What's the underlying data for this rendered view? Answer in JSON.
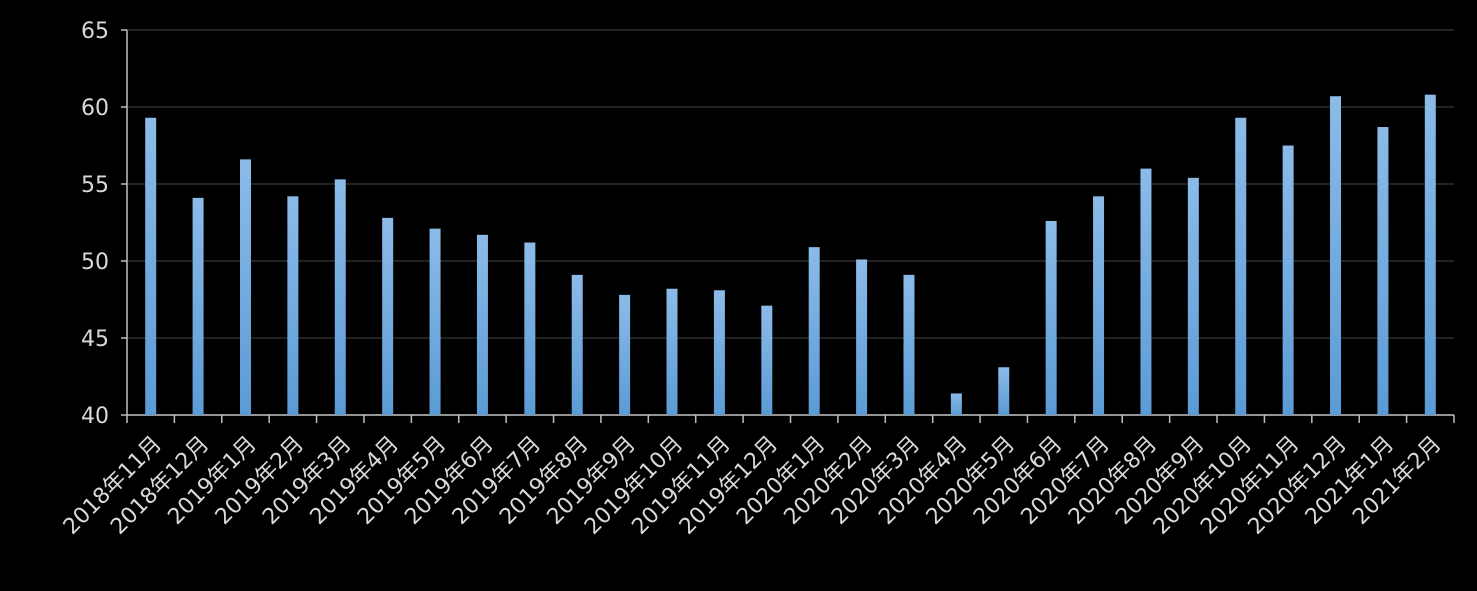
{
  "chart_data": {
    "type": "bar",
    "categories": [
      "2018年11月",
      "2018年12月",
      "2019年1月",
      "2019年2月",
      "2019年3月",
      "2019年4月",
      "2019年5月",
      "2019年6月",
      "2019年7月",
      "2019年8月",
      "2019年9月",
      "2019年10月",
      "2019年11月",
      "2019年12月",
      "2020年1月",
      "2020年2月",
      "2020年3月",
      "2020年4月",
      "2020年5月",
      "2020年6月",
      "2020年7月",
      "2020年8月",
      "2020年9月",
      "2020年10月",
      "2020年11月",
      "2020年12月",
      "2021年1月",
      "2021年2月"
    ],
    "values": [
      59.3,
      54.1,
      56.6,
      54.2,
      55.3,
      52.8,
      52.1,
      51.7,
      51.2,
      49.1,
      47.8,
      48.2,
      48.1,
      47.1,
      50.9,
      50.1,
      49.1,
      41.4,
      43.1,
      52.6,
      54.2,
      56.0,
      55.4,
      59.3,
      57.5,
      60.7,
      58.7,
      60.8
    ],
    "color": "#5b9bd5",
    "ylim": [
      40,
      65
    ],
    "yticks": [
      40,
      45,
      50,
      55,
      60,
      65
    ],
    "grid": true
  }
}
